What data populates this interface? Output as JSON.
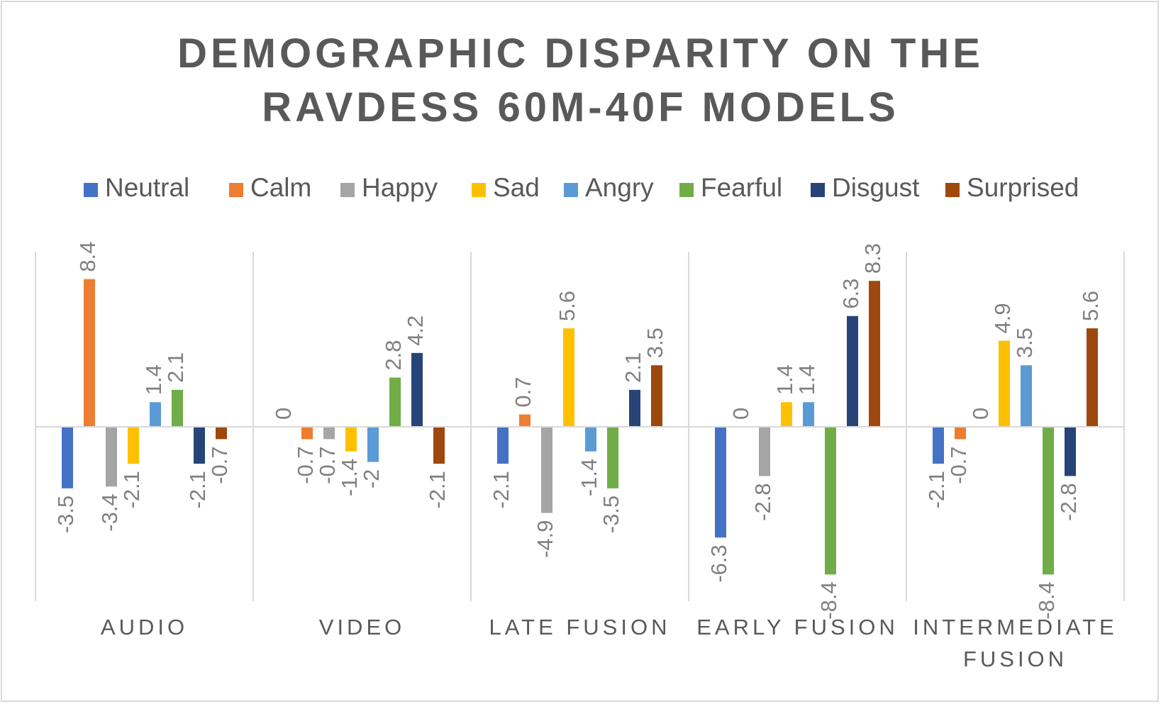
{
  "chart_data": {
    "type": "bar",
    "title_lines": [
      "DEMOGRAPHIC DISPARITY ON THE",
      "RAVDESS 60M-40F MODELS"
    ],
    "categories": [
      [
        "AUDIO"
      ],
      [
        "VIDEO"
      ],
      [
        "LATE FUSION"
      ],
      [
        "EARLY FUSION"
      ],
      [
        "INTERMEDIATE",
        "FUSION"
      ]
    ],
    "series": [
      {
        "name": "Neutral",
        "color": "#4472c4",
        "values": [
          -3.5,
          0,
          -2.1,
          -6.3,
          -2.1
        ]
      },
      {
        "name": "Calm",
        "color": "#ed7d31",
        "values": [
          8.4,
          -0.7,
          0.7,
          0,
          -0.7
        ]
      },
      {
        "name": "Happy",
        "color": "#a5a5a5",
        "values": [
          -3.4,
          -0.7,
          -4.9,
          -2.8,
          0
        ]
      },
      {
        "name": "Sad",
        "color": "#ffc000",
        "values": [
          -2.1,
          -1.4,
          5.6,
          1.4,
          4.9
        ]
      },
      {
        "name": "Angry",
        "color": "#5b9bd5",
        "values": [
          1.4,
          -2,
          -1.4,
          1.4,
          3.5
        ]
      },
      {
        "name": "Fearful",
        "color": "#70ad47",
        "values": [
          2.1,
          2.8,
          -3.5,
          -8.4,
          -8.4
        ]
      },
      {
        "name": "Disgust",
        "color": "#264478",
        "values": [
          -2.1,
          4.2,
          2.1,
          6.3,
          -2.8
        ]
      },
      {
        "name": "Surprised",
        "color": "#9e480e",
        "values": [
          -0.7,
          -2.1,
          3.5,
          8.3,
          5.6
        ]
      }
    ],
    "ylim": [
      -10,
      10
    ],
    "legend_position": "top",
    "grid": false,
    "data_labels": true
  }
}
